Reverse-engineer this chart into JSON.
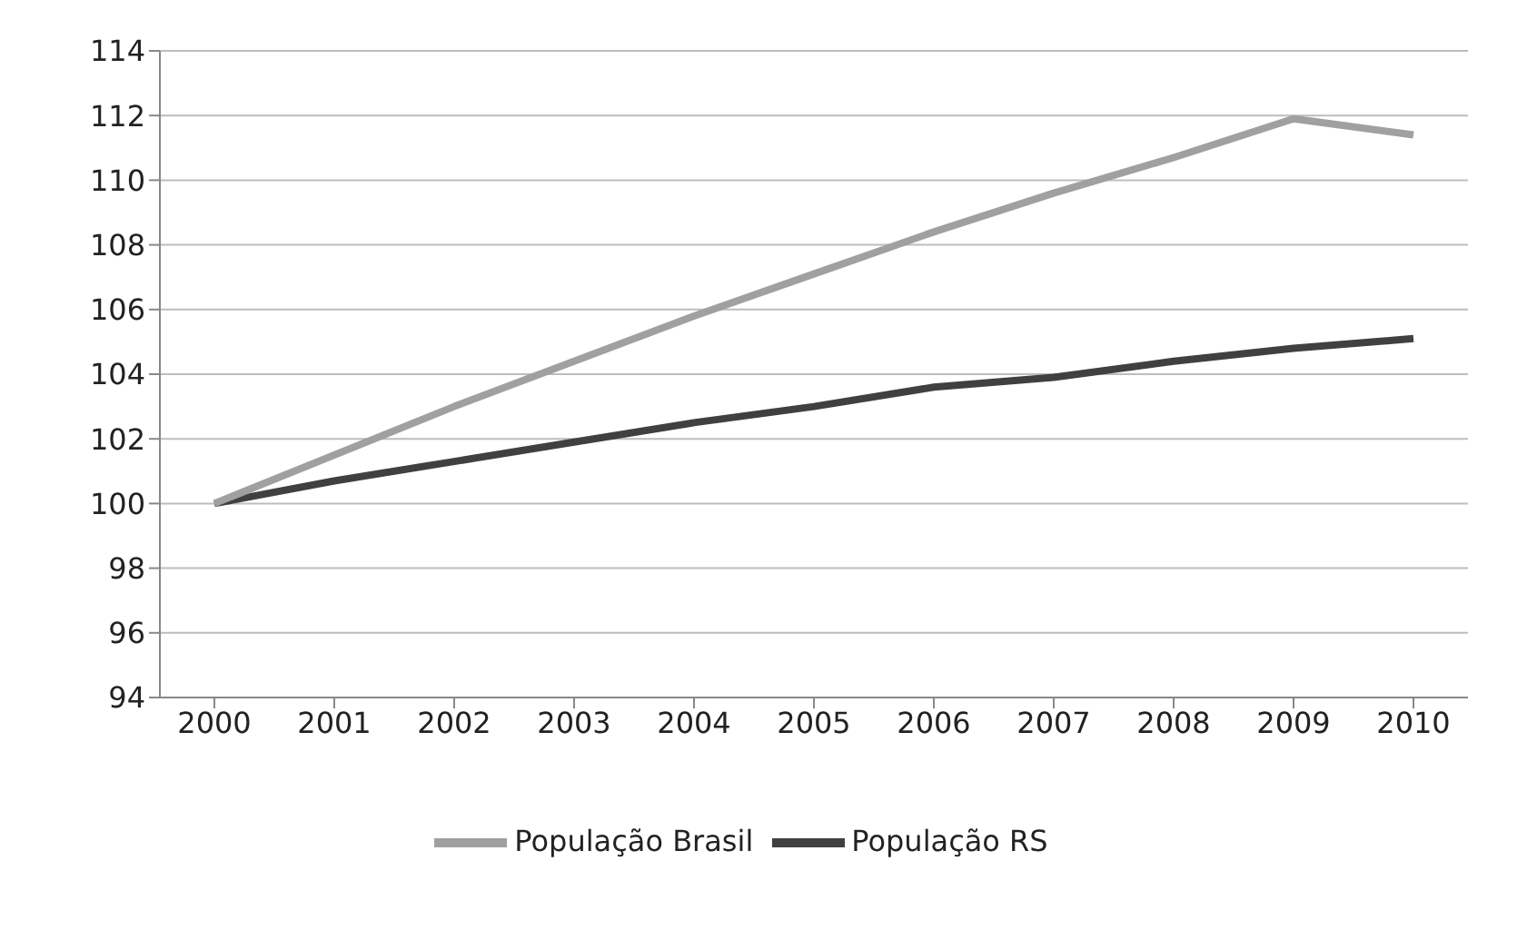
{
  "chart_data": {
    "type": "line",
    "categories": [
      "2000",
      "2001",
      "2002",
      "2003",
      "2004",
      "2005",
      "2006",
      "2007",
      "2008",
      "2009",
      "2010"
    ],
    "series": [
      {
        "name": "População RS",
        "color": "#404040",
        "values": [
          100,
          100.7,
          101.3,
          101.9,
          102.5,
          103.0,
          103.6,
          103.9,
          104.4,
          104.8,
          105.1
        ]
      },
      {
        "name": "População Brasil",
        "color": "#a0a0a0",
        "values": [
          100,
          101.5,
          103.0,
          104.4,
          105.8,
          107.1,
          108.4,
          109.6,
          110.7,
          111.9,
          111.4
        ]
      }
    ],
    "ylim": [
      94,
      114
    ],
    "yticks": [
      94,
      96,
      98,
      100,
      102,
      104,
      106,
      108,
      110,
      112,
      114
    ],
    "grid": "y",
    "legend": "bottom",
    "marker": "none",
    "line_style": "solid"
  }
}
